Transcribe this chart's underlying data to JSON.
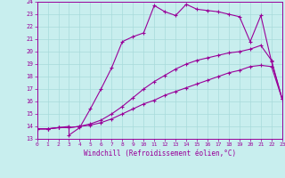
{
  "xlabel": "Windchill (Refroidissement éolien,°C)",
  "bg_color": "#c8eeee",
  "grid_color": "#a8dada",
  "line_color": "#990099",
  "xlim": [
    0,
    23
  ],
  "ylim": [
    13,
    24
  ],
  "xticks": [
    0,
    1,
    2,
    3,
    4,
    5,
    6,
    7,
    8,
    9,
    10,
    11,
    12,
    13,
    14,
    15,
    16,
    17,
    18,
    19,
    20,
    21,
    22,
    23
  ],
  "yticks": [
    13,
    14,
    15,
    16,
    17,
    18,
    19,
    20,
    21,
    22,
    23,
    24
  ],
  "line1_x": [
    0,
    1,
    2,
    3,
    4,
    5,
    6,
    7,
    8,
    9,
    10,
    11,
    12,
    13,
    14,
    15,
    16,
    17,
    18,
    19,
    20,
    21,
    22,
    23
  ],
  "line1_y": [
    13.8,
    13.8,
    13.9,
    13.9,
    14.0,
    14.1,
    14.3,
    14.6,
    15.0,
    15.4,
    15.8,
    16.1,
    16.5,
    16.8,
    17.1,
    17.4,
    17.7,
    18.0,
    18.3,
    18.5,
    18.8,
    18.9,
    18.8,
    16.2
  ],
  "line2_x": [
    0,
    1,
    2,
    3,
    4,
    5,
    6,
    7,
    8,
    9,
    10,
    11,
    12,
    13,
    14,
    15,
    16,
    17,
    18,
    19,
    20,
    21,
    22,
    23
  ],
  "line2_y": [
    13.8,
    13.8,
    13.9,
    13.9,
    14.0,
    14.2,
    14.5,
    15.0,
    15.6,
    16.3,
    17.0,
    17.6,
    18.1,
    18.6,
    19.0,
    19.3,
    19.5,
    19.7,
    19.9,
    20.0,
    20.2,
    20.5,
    19.3,
    16.2
  ],
  "line3_x": [
    0,
    1,
    2,
    3,
    3,
    4,
    5,
    6,
    7,
    8,
    9,
    10,
    11,
    12,
    13,
    14,
    15,
    16,
    17,
    18,
    19,
    20,
    21,
    22,
    23
  ],
  "line3_y": [
    13.8,
    13.8,
    13.9,
    14.0,
    13.3,
    13.9,
    15.4,
    17.0,
    18.7,
    20.8,
    21.2,
    21.5,
    23.7,
    23.2,
    22.9,
    23.8,
    23.4,
    23.3,
    23.2,
    23.0,
    22.8,
    20.8,
    22.9,
    19.2,
    16.2
  ]
}
